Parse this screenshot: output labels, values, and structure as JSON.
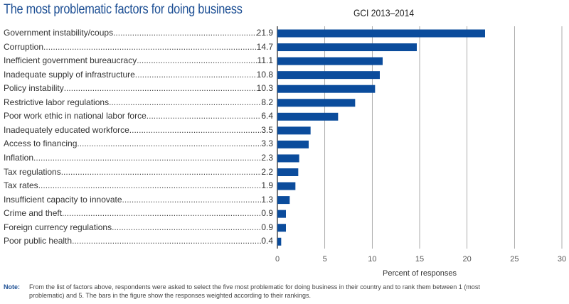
{
  "chart_data": {
    "type": "bar",
    "orientation": "horizontal",
    "title": "The most problematic factors for doing business",
    "subtitle": "GCI 2013–2014",
    "xlabel": "Percent of responses",
    "xlim": [
      0,
      30
    ],
    "xticks": [
      0,
      5,
      10,
      15,
      20,
      25,
      30
    ],
    "grid": true,
    "bar_color": "#0b4c9c",
    "categories": [
      "Government instability/coups",
      "Corruption",
      "Inefficient government bureaucracy",
      "Inadequate supply of infrastructure",
      "Policy instability",
      "Restrictive labor regulations",
      "Poor work ethic in national labor force",
      "Inadequately educated workforce",
      "Access to financing",
      "Inflation",
      "Tax regulations",
      "Tax rates",
      "Insufficient capacity to innovate",
      "Crime and theft",
      "Foreign currency regulations",
      "Poor public health"
    ],
    "values": [
      21.9,
      14.7,
      11.1,
      10.8,
      10.3,
      8.2,
      6.4,
      3.5,
      3.3,
      2.3,
      2.2,
      1.9,
      1.3,
      0.9,
      0.9,
      0.4
    ],
    "value_labels": [
      "21.9",
      "14.7",
      "11.1",
      "10.8",
      "10.3",
      "8.2",
      "6.4",
      "3.5",
      "3.3",
      "2.3",
      "2.2",
      "1.9",
      "1.3",
      "0.9",
      "0.9",
      "0.4"
    ]
  },
  "note": {
    "label": "Note:",
    "text": "From the list of factors above, respondents were asked to select the five most problematic for doing business in their country and to rank them between 1 (most problematic) and 5. The bars in the figure show the responses weighted according to their rankings."
  }
}
